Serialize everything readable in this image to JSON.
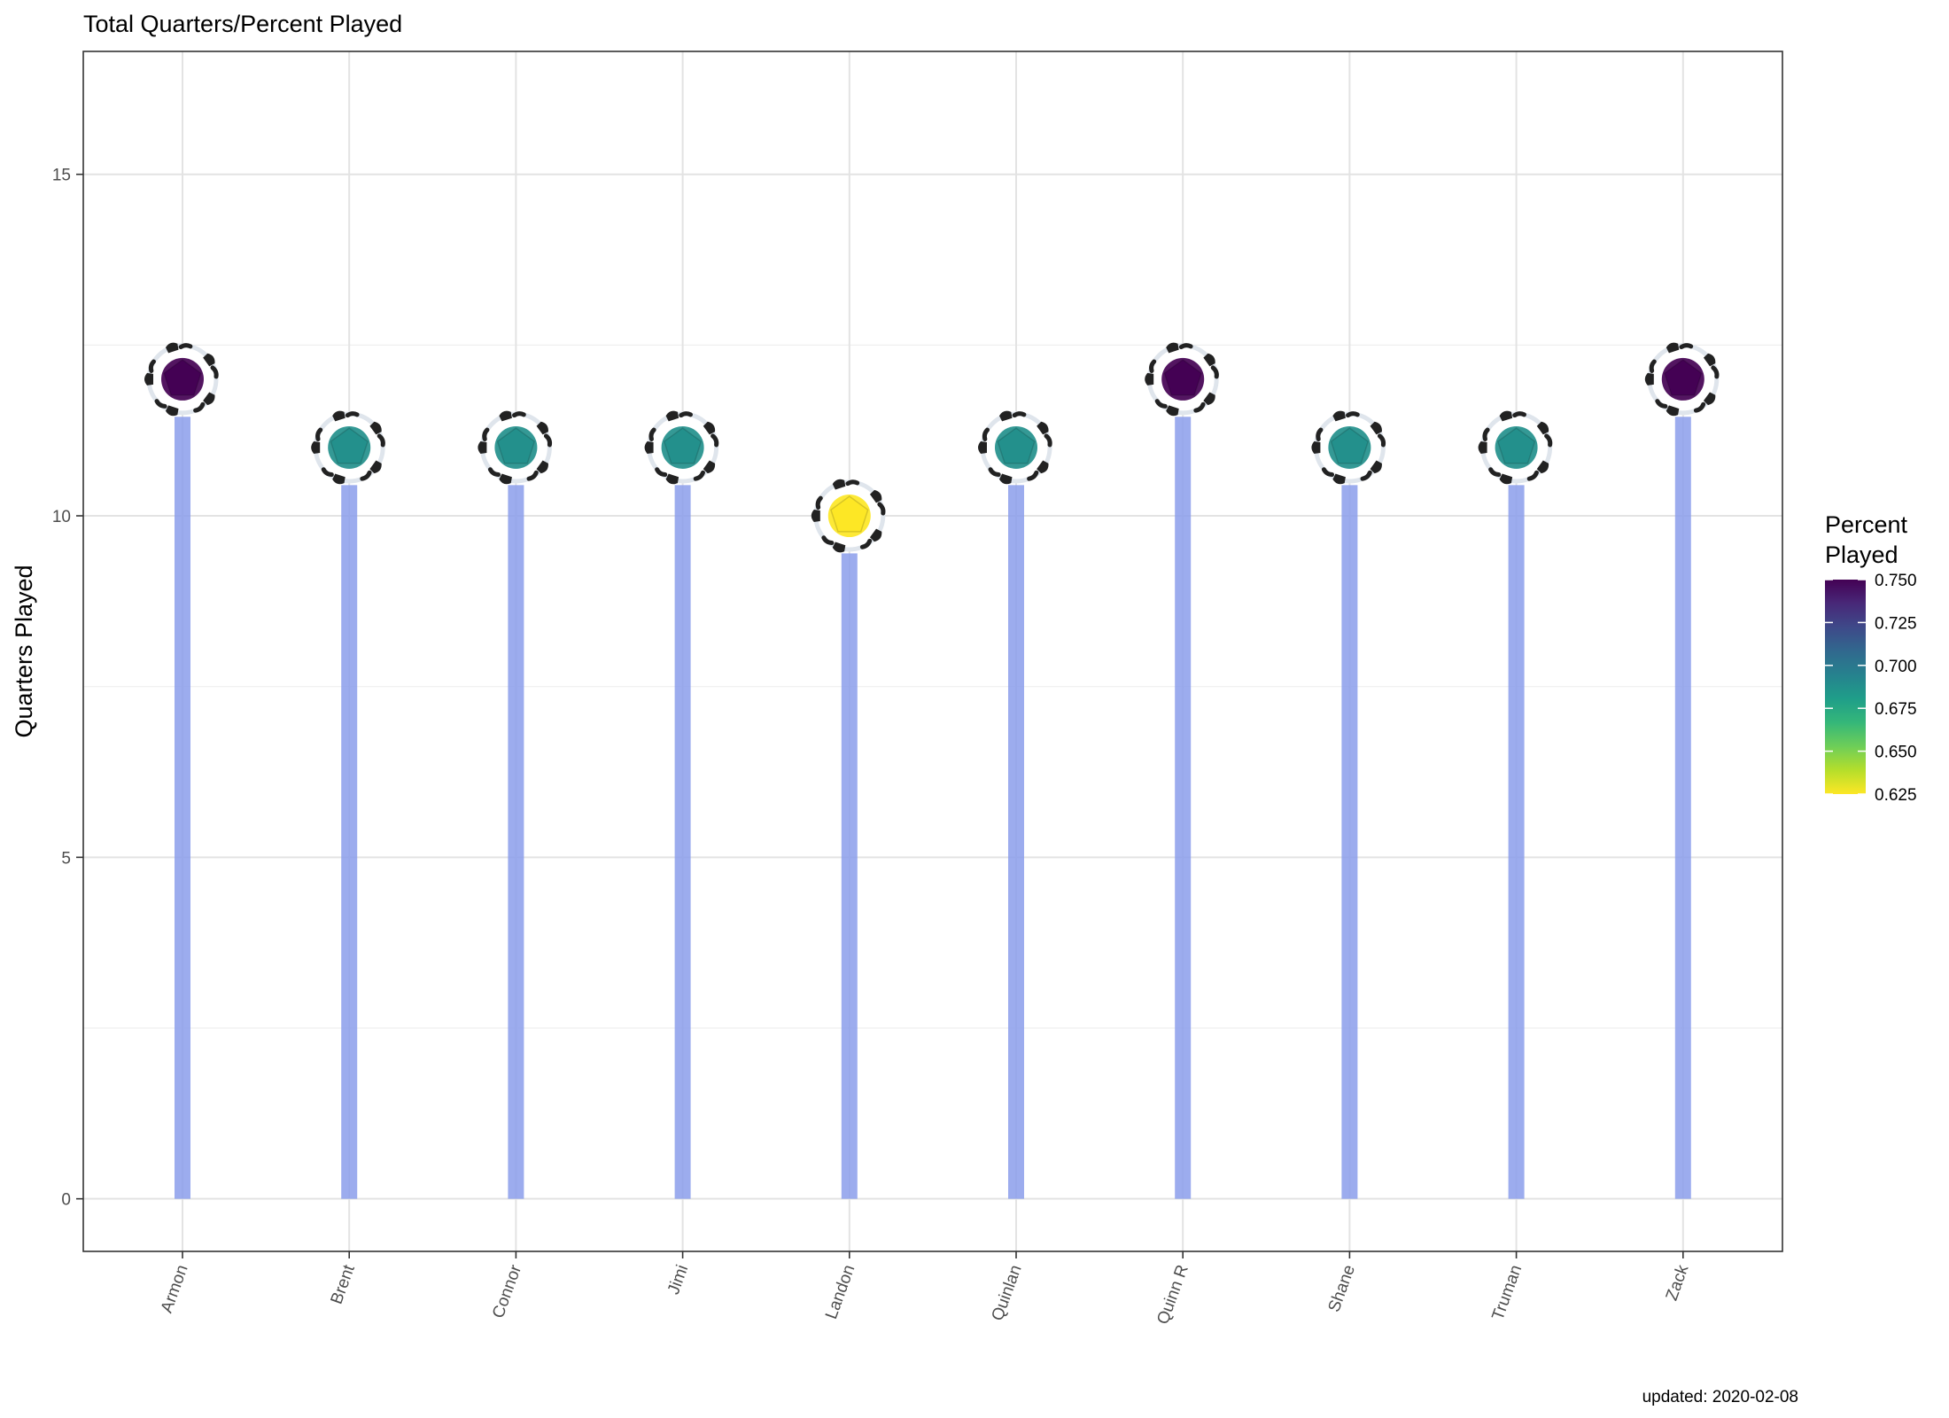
{
  "chart_data": {
    "type": "lollipop",
    "title": "Total Quarters/Percent Played",
    "ylabel": "Quarters Played",
    "xlabel": "",
    "caption": "updated: 2020-02-08",
    "categories": [
      "Armon",
      "Brent",
      "Connor",
      "Jimi",
      "Landon",
      "Quinlan",
      "Quinn R",
      "Shane",
      "Truman",
      "Zack"
    ],
    "values": [
      12,
      11,
      11,
      11,
      10,
      11,
      12,
      11,
      11,
      12
    ],
    "percent_played": [
      0.75,
      0.6875,
      0.6875,
      0.6875,
      0.625,
      0.6875,
      0.75,
      0.6875,
      0.6875,
      0.75
    ],
    "ylim": [
      -0.77,
      16.8
    ],
    "yticks": [
      0,
      5,
      10,
      15
    ],
    "y_minor_gridlines": [
      2.5,
      7.5,
      12.5
    ],
    "grid": true,
    "marker": "soccer-ball-icon",
    "legend": {
      "title_lines": [
        "Percent",
        "Played"
      ],
      "position": "right",
      "range": [
        0.625,
        0.75
      ],
      "ticks": [
        0.75,
        0.725,
        0.7,
        0.675,
        0.65,
        0.625
      ],
      "tick_labels": [
        "0.750",
        "0.725",
        "0.700",
        "0.675",
        "0.650",
        "0.625"
      ]
    },
    "colors": {
      "stem": "#8b9deb",
      "grid": "#e6e6e6",
      "panel_border": "#333333",
      "viridis": [
        "#fde725",
        "#b5de2b",
        "#6ece58",
        "#35b779",
        "#1f9e89",
        "#26828e",
        "#31688e",
        "#3e4989",
        "#482878",
        "#440154"
      ]
    }
  }
}
